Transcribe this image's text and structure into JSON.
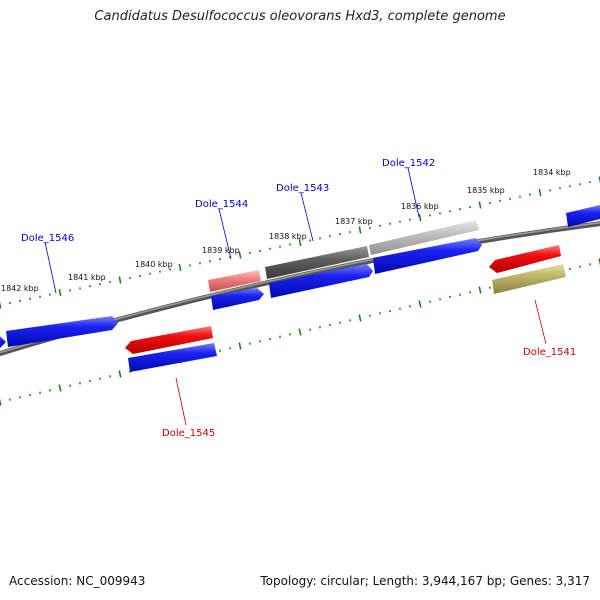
{
  "title": "Candidatus Desulfococcus oleovorans Hxd3, complete genome",
  "footer": {
    "accession": "Accession: NC_009943",
    "stats": "Topology: circular; Length: 3,944,167 bp; Genes: 3,317"
  },
  "colors": {
    "forward_gene": "#0a14e6",
    "reverse_gene": "#e60a0a",
    "label_forward": "#0000cc",
    "label_reverse": "#cc0000",
    "tick": "#1a8a1a",
    "backbone": "#777777"
  },
  "scale_labels": [
    "1834 kbp",
    "1835 kbp",
    "1836 kbp",
    "1837 kbp",
    "1838 kbp",
    "1839 kbp",
    "1840 kbp",
    "1841 kbp",
    "1842 kbp"
  ],
  "genes": [
    {
      "label": "Dole_1541",
      "strand": "reverse"
    },
    {
      "label": "Dole_1542",
      "strand": "forward"
    },
    {
      "label": "Dole_1543",
      "strand": "forward"
    },
    {
      "label": "Dole_1544",
      "strand": "forward"
    },
    {
      "label": "Dole_1545",
      "strand": "reverse"
    },
    {
      "label": "Dole_1546",
      "strand": "forward"
    }
  ]
}
